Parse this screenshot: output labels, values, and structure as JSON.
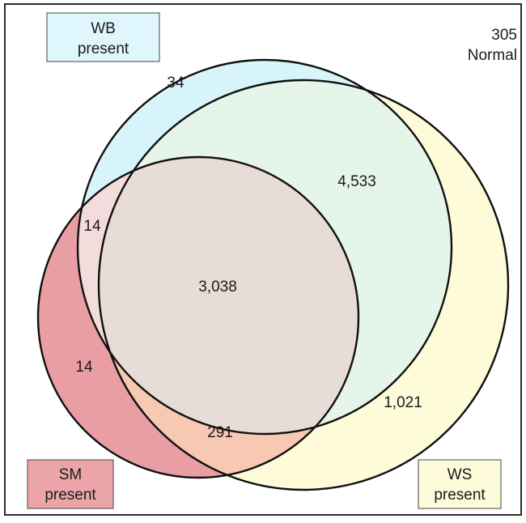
{
  "sets": {
    "wb": {
      "label_line1": "WB",
      "label_line2": "present",
      "fill": "#d8f4fb",
      "box_fill": "#dff6fc"
    },
    "ws": {
      "label_line1": "WS",
      "label_line2": "present",
      "fill": "#fdfbd8",
      "box_fill": "#fdfbd9"
    },
    "sm": {
      "label_line1": "SM",
      "label_line2": "present",
      "fill": "#e89ea2",
      "box_fill": "#eba5a8"
    }
  },
  "outside": {
    "count": "305",
    "label": "Normal"
  },
  "regions": {
    "wb_only": "34",
    "wb_ws": "4,533",
    "wb_sm": "14",
    "all_three": "3,038",
    "sm_only": "14",
    "ws_sm": "291",
    "ws_only": "1,021"
  },
  "colors": {
    "frame": "#2b2b2b",
    "circle_stroke": "#111111",
    "wb_ws_fill": "#e6f5e9",
    "wb_sm_fill": "#f3dcdc",
    "ws_sm_fill": "#f7c9b3",
    "all_fill": "#e7ddd6"
  }
}
